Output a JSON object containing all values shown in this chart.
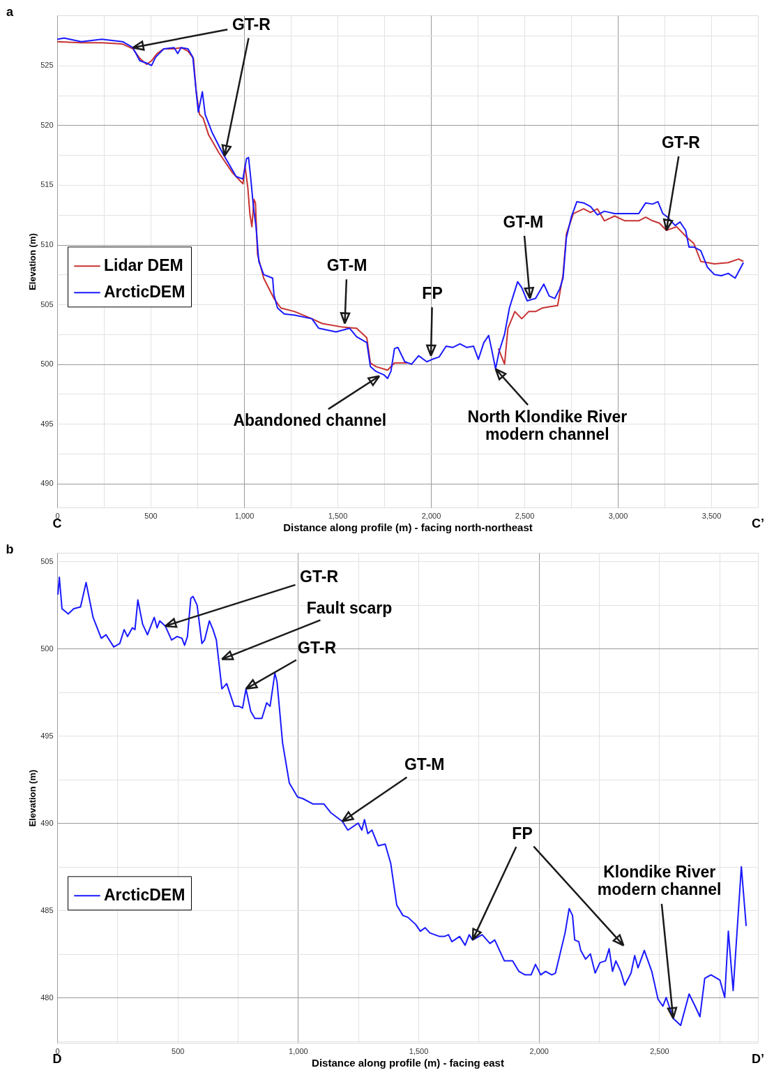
{
  "chart_data": [
    {
      "type": "line",
      "xlabel": "Distance along profile (m) - facing north-northeast",
      "ylabel": "Elevation (m)",
      "xlim": [
        0,
        3750
      ],
      "ylim": [
        488,
        529.2
      ],
      "xticks": [
        0,
        {
          "value": 250,
          "label": null
        },
        500,
        {
          "value": 750,
          "label": null
        },
        {
          "value": 1000,
          "label": "1,000"
        },
        {
          "value": 1250,
          "label": null
        },
        {
          "value": 1500,
          "label": "1,500"
        },
        {
          "value": 1750,
          "label": null
        },
        {
          "value": 2000,
          "label": "2,000"
        },
        {
          "value": 2250,
          "label": null
        },
        {
          "value": 2500,
          "label": "2,500"
        },
        {
          "value": 2750,
          "label": null
        },
        {
          "value": 3000,
          "label": "3,000"
        },
        {
          "value": 3250,
          "label": null
        },
        {
          "value": 3500,
          "label": "3,500"
        }
      ],
      "yticks": [
        490,
        {
          "value": 492.5,
          "label": null
        },
        495,
        {
          "value": 497.5,
          "label": null
        },
        500,
        {
          "value": 502.5,
          "label": null
        },
        505,
        {
          "value": 507.5,
          "label": null
        },
        510,
        {
          "value": 512.5,
          "label": null
        },
        515,
        {
          "value": 517.5,
          "label": null
        },
        520,
        {
          "value": 522.5,
          "label": null
        },
        525,
        {
          "value": 527.5,
          "label": null
        }
      ],
      "grid": true,
      "legend": "left",
      "line_style": "solid",
      "series": [
        {
          "name": "Lidar DEM",
          "color": "#c83232",
          "x": [
            0,
            129,
            239,
            350,
            405,
            442,
            479,
            505,
            534,
            571,
            626,
            663,
            700,
            729,
            744,
            762,
            781,
            810,
            865,
            939,
            994,
            1005,
            1020,
            1031,
            1042,
            1053,
            1061,
            1072,
            1105,
            1160,
            1197,
            1271,
            1363,
            1418,
            1528,
            1602,
            1657,
            1676,
            1705,
            1768,
            1805,
            1875,
            2000,
            2361,
            2394,
            2412,
            2449,
            2486,
            2523,
            2560,
            2597,
            2633,
            2678,
            2707,
            2725,
            2762,
            2817,
            2854,
            2891,
            2928,
            2983,
            3038,
            3112,
            3149,
            3186,
            3223,
            3260,
            3315,
            3370,
            3407,
            3444,
            3480,
            3517,
            3591,
            3646,
            3672
          ],
          "values": [
            527.0,
            526.9,
            526.9,
            526.8,
            526.4,
            525.6,
            525.1,
            525.4,
            526.0,
            526.4,
            526.4,
            526.5,
            526.2,
            525.6,
            522.8,
            520.9,
            520.6,
            519.2,
            517.7,
            516.0,
            515.1,
            516.6,
            514.8,
            512.6,
            511.5,
            513.8,
            513.5,
            509.2,
            507.2,
            505.5,
            504.7,
            504.4,
            503.8,
            503.4,
            503.1,
            503.0,
            502.2,
            500.1,
            499.8,
            499.5,
            500.1,
            500.1,
            null,
            501.3,
            500.0,
            503.0,
            504.4,
            503.8,
            504.4,
            504.4,
            504.7,
            504.8,
            504.9,
            507.5,
            510.9,
            512.6,
            513.0,
            512.7,
            513.0,
            512.0,
            512.4,
            512.0,
            512.0,
            512.3,
            512.0,
            511.8,
            511.2,
            511.5,
            510.6,
            510.1,
            508.6,
            508.5,
            508.4,
            508.5,
            508.8,
            508.6
          ]
        },
        {
          "name": "ArcticDEM",
          "color": "#1a1aff",
          "x": [
            0,
            37,
            129,
            239,
            350,
            405,
            442,
            479,
            505,
            527,
            571,
            626,
            645,
            663,
            700,
            726,
            744,
            755,
            777,
            792,
            829,
            884,
            958,
            994,
            1013,
            1024,
            1035,
            1050,
            1064,
            1079,
            1105,
            1153,
            1160,
            1179,
            1215,
            1271,
            1363,
            1400,
            1492,
            1565,
            1602,
            1657,
            1676,
            1705,
            1749,
            1768,
            1786,
            1805,
            1823,
            1860,
            1897,
            1934,
            1978,
            2007,
            2044,
            2081,
            2118,
            2155,
            2191,
            2228,
            2254,
            2283,
            2309,
            2324,
            2346,
            2364,
            2394,
            2420,
            2442,
            2464,
            2486,
            2515,
            2560,
            2604,
            2633,
            2663,
            2689,
            2707,
            2725,
            2751,
            2781,
            2817,
            2854,
            2891,
            2928,
            2983,
            3038,
            3112,
            3149,
            3186,
            3215,
            3241,
            3267,
            3307,
            3333,
            3363,
            3381,
            3407,
            3444,
            3480,
            3517,
            3554,
            3591,
            3628,
            3672
          ],
          "values": [
            527.2,
            527.3,
            527.0,
            527.2,
            527.0,
            526.5,
            525.4,
            525.2,
            525.0,
            525.7,
            526.4,
            526.5,
            526.0,
            526.5,
            526.4,
            525.7,
            522.8,
            521.1,
            522.8,
            520.9,
            519.4,
            517.7,
            515.7,
            515.5,
            517.2,
            517.3,
            515.7,
            513.2,
            511.5,
            508.6,
            507.5,
            507.2,
            505.8,
            504.7,
            504.2,
            504.1,
            503.8,
            503.0,
            502.7,
            503.0,
            502.3,
            501.8,
            499.8,
            499.4,
            499.1,
            498.8,
            499.4,
            501.3,
            501.4,
            500.2,
            500.0,
            500.7,
            500.2,
            500.4,
            500.6,
            501.5,
            501.4,
            501.7,
            501.4,
            501.5,
            500.4,
            501.8,
            502.4,
            501.3,
            499.6,
            501.0,
            502.5,
            504.7,
            505.8,
            506.9,
            506.4,
            505.3,
            505.5,
            506.7,
            505.7,
            505.5,
            506.3,
            507.2,
            510.6,
            512.3,
            513.6,
            513.5,
            513.2,
            512.5,
            512.8,
            512.6,
            512.6,
            512.6,
            513.5,
            513.4,
            513.6,
            512.6,
            512.3,
            511.6,
            511.9,
            511.2,
            509.8,
            509.8,
            509.5,
            508.1,
            507.5,
            507.4,
            507.6,
            507.2,
            508.5
          ]
        }
      ],
      "annotations": [
        {
          "text": "GT-R",
          "x": 405,
          "y": 526.5
        },
        {
          "text": "GT-M",
          "x": 1539,
          "y": 503.4
        },
        {
          "text": "FP",
          "x": 2000,
          "y": 500.7
        },
        {
          "text": "Abandoned channel",
          "x": 1724,
          "y": 499.0
        },
        {
          "text": "North Klondike River\nmodern channel",
          "x": 2346,
          "y": 499.6
        },
        {
          "text": "GT-M",
          "x": 2530,
          "y": 505.5
        },
        {
          "text": "GT-R",
          "x": 3260,
          "y": 511.2
        },
        "a",
        "C",
        "C’"
      ]
    },
    {
      "type": "line",
      "xlabel": "Distance along profile (m) - facing east",
      "ylabel": "Elevation (m)",
      "xlim": [
        0,
        2910
      ],
      "ylim": [
        477.4,
        505.5
      ],
      "xticks": [
        0,
        {
          "value": 250,
          "label": null
        },
        500,
        {
          "value": 750,
          "label": null
        },
        {
          "value": 1000,
          "label": "1,000"
        },
        {
          "value": 1250,
          "label": null
        },
        {
          "value": 1500,
          "label": "1,500"
        },
        {
          "value": 1750,
          "label": null
        },
        {
          "value": 2000,
          "label": "2,000"
        },
        {
          "value": 2250,
          "label": null
        },
        {
          "value": 2500,
          "label": "2,500"
        },
        {
          "value": 2750,
          "label": null
        }
      ],
      "yticks": [
        {
          "value": 477.5,
          "label": null
        },
        480,
        {
          "value": 482.5,
          "label": null
        },
        485,
        {
          "value": 487.5,
          "label": null
        },
        490,
        {
          "value": 492.5,
          "label": null
        },
        495,
        {
          "value": 497.5,
          "label": null
        },
        500,
        {
          "value": 502.5,
          "label": null
        },
        505
      ],
      "grid": true,
      "legend": "left",
      "line_style": "solid",
      "series": [
        {
          "name": "ArcticDEM",
          "color": "#1a1aff",
          "x": [
            3,
            9,
            20,
            46,
            69,
            97,
            120,
            149,
            183,
            203,
            235,
            260,
            278,
            292,
            312,
            323,
            335,
            355,
            375,
            403,
            415,
            426,
            449,
            475,
            498,
            518,
            529,
            541,
            555,
            564,
            581,
            601,
            612,
            632,
            647,
            661,
            684,
            704,
            735,
            755,
            770,
            784,
            804,
            821,
            841,
            850,
            870,
            884,
            904,
            913,
            936,
            964,
            998,
            1021,
            1061,
            1107,
            1136,
            1184,
            1207,
            1250,
            1265,
            1276,
            1290,
            1307,
            1333,
            1362,
            1385,
            1410,
            1436,
            1456,
            1488,
            1508,
            1528,
            1548,
            1588,
            1608,
            1625,
            1639,
            1671,
            1694,
            1711,
            1725,
            1765,
            1797,
            1817,
            1857,
            1891,
            1917,
            1943,
            1968,
            1986,
            2008,
            2028,
            2054,
            2069,
            2083,
            2109,
            2126,
            2140,
            2149,
            2166,
            2174,
            2194,
            2214,
            2234,
            2254,
            2277,
            2292,
            2306,
            2320,
            2340,
            2357,
            2383,
            2398,
            2412,
            2438,
            2469,
            2495,
            2515,
            2529,
            2558,
            2589,
            2624,
            2649,
            2669,
            2689,
            2715,
            2752,
            2772,
            2787,
            2807,
            2841,
            2861
          ],
          "values": [
            503.1,
            504.1,
            502.3,
            502.0,
            502.3,
            502.4,
            503.8,
            501.8,
            500.6,
            500.8,
            500.1,
            500.3,
            501.1,
            500.7,
            501.2,
            501.1,
            502.8,
            501.4,
            500.8,
            501.8,
            501.2,
            501.6,
            501.3,
            500.5,
            500.7,
            500.6,
            500.2,
            500.7,
            502.9,
            503.0,
            502.5,
            500.3,
            500.5,
            501.6,
            501.1,
            500.5,
            497.7,
            498.0,
            496.7,
            496.7,
            496.6,
            497.7,
            496.4,
            496.0,
            496.0,
            496.0,
            496.9,
            496.7,
            498.6,
            498.1,
            494.6,
            492.3,
            491.5,
            491.4,
            491.1,
            491.1,
            490.6,
            490.1,
            489.6,
            490.0,
            489.6,
            490.2,
            489.4,
            489.6,
            488.7,
            488.8,
            487.7,
            485.3,
            484.7,
            484.6,
            484.2,
            483.8,
            484.0,
            483.7,
            483.5,
            483.5,
            483.6,
            483.2,
            483.5,
            483.0,
            483.6,
            483.3,
            483.6,
            483.1,
            483.3,
            482.1,
            482.1,
            481.5,
            481.3,
            481.3,
            481.9,
            481.3,
            481.5,
            481.3,
            481.4,
            482.2,
            483.7,
            485.1,
            484.7,
            483.3,
            483.2,
            482.7,
            482.2,
            482.5,
            481.4,
            482.0,
            482.1,
            482.8,
            481.5,
            482.1,
            481.5,
            480.7,
            481.4,
            482.4,
            481.7,
            482.7,
            481.5,
            479.9,
            479.5,
            480.0,
            478.8,
            478.4,
            480.2,
            479.5,
            478.9,
            481.1,
            481.3,
            481.0,
            480.0,
            483.8,
            480.4,
            487.5,
            484.1
          ]
        }
      ],
      "annotations": [
        {
          "text": "GT-R",
          "x": 449,
          "y": 501.3
        },
        {
          "text": "Fault scarp",
          "x": 684,
          "y": 499.4
        },
        {
          "text": "GT-R",
          "x": 784,
          "y": 497.7
        },
        {
          "text": "GT-M",
          "x": 1184,
          "y": 490.1
        },
        {
          "text": "FP",
          "x": 1725,
          "y": 483.3
        },
        {
          "text": "Klondike River\nmodern channel",
          "x": 2558,
          "y": 478.8
        },
        "b",
        "D",
        "D’"
      ]
    }
  ]
}
